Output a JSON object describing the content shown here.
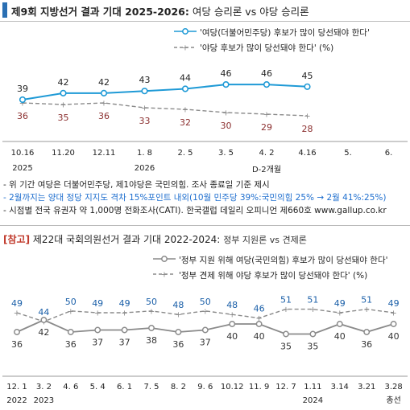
{
  "header": {
    "title": "제9회 지방선거 결과 기대 2025-2026:",
    "subtitle": "여당 승리론 vs 야당 승리론"
  },
  "chart1_legend": {
    "series1": "'여당(더불어민주당) 후보가 많이 당선돼야 한다'",
    "series2": "'야당 후보가 많이 당선돼야 한다' (%)"
  },
  "notes": {
    "line1": "- 위 기간 여당은 더불어민주당, 제1야당은 국민의힘. 조사 종료일 기준 제시",
    "line2": "- 2월까지는 양대 정당 지지도 격차 15%포인트 내외(10월 민주당 39%:국민의힘 25% → 2월 41%:25%)",
    "line3": "- 시점별 전국 유권자 약 1,000명 전화조사(CATI). 한국갤럽 데일리 오피니언 제660호 www.gallup.co.kr"
  },
  "section2": {
    "tag": "[참고]",
    "title": "제22대 국회의원선거 결과 기대 2022-2024:",
    "subtitle": "정부 지원론 vs 견제론"
  },
  "chart2_legend": {
    "series1": "'정부 지원 위해 여당(국민의힘) 후보가 많이 당선돼야 한다'",
    "series2": "'정부 견제 위해 야당 후보가 많이 당선돼야 한다' (%)"
  },
  "colors": {
    "blue": "#1f9ad6",
    "gray": "#8a8a8a",
    "darkred": "#8b2f2f",
    "navy": "#1a5fa8",
    "accent_bar": "#2a6fb3"
  },
  "chart_data": [
    {
      "type": "line",
      "categories": [
        "10.16",
        "11.20",
        "12.11",
        "1. 8",
        "2. 5",
        "3. 5",
        "4. 2",
        "4.16",
        "5.",
        "6."
      ],
      "year_labels": [
        {
          "index": 0,
          "label": "2025"
        },
        {
          "index": 3,
          "label": "2026"
        }
      ],
      "annotation": {
        "index": 6,
        "text": "D-2개월"
      },
      "series": [
        {
          "name": "'여당(더불어민주당) 후보가 많이 당선돼야 한다'",
          "values": [
            39,
            42,
            42,
            43,
            44,
            46,
            46,
            45,
            null,
            null
          ],
          "color": "#1f9ad6",
          "style": "solid"
        },
        {
          "name": "'야당 후보가 많이 당선돼야 한다' (%)",
          "values": [
            36,
            35,
            36,
            33,
            32,
            30,
            29,
            28,
            null,
            null
          ],
          "color": "#8a8a8a",
          "label_color": "#8b2f2f",
          "style": "dashed"
        }
      ]
    },
    {
      "type": "line",
      "categories": [
        "12. 1",
        "3. 2",
        "4. 6",
        "5. 4",
        "6. 1",
        "7. 5",
        "8. 2",
        "9. 6",
        "10.12",
        "11. 9",
        "12. 7",
        "1.11",
        "3.14",
        "3.21",
        "3.28"
      ],
      "year_labels": [
        {
          "index": 0,
          "label": "2022"
        },
        {
          "index": 1,
          "label": "2023"
        },
        {
          "index": 11,
          "label": "2024"
        },
        {
          "index": 14,
          "label": "총선"
        }
      ],
      "series": [
        {
          "name": "'정부 지원 위해 여당(국민의힘) 후보가 많이 당선돼야 한다'",
          "values": [
            36,
            42,
            36,
            37,
            37,
            38,
            36,
            37,
            40,
            40,
            35,
            35,
            40,
            36,
            40
          ],
          "color": "#8a8a8a",
          "label_color": "#333333",
          "style": "solid"
        },
        {
          "name": "'정부 견제 위해 야당 후보가 많이 당선돼야 한다' (%)",
          "values": [
            49,
            44,
            50,
            49,
            49,
            50,
            48,
            50,
            48,
            46,
            51,
            51,
            49,
            51,
            49
          ],
          "color": "#8a8a8a",
          "label_color": "#1a5fa8",
          "style": "dashed"
        }
      ]
    }
  ]
}
